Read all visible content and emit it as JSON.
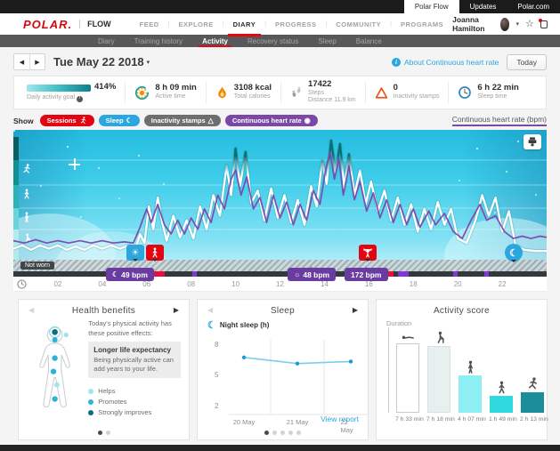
{
  "icons": {
    "moon": "☾",
    "sun": "☀",
    "day_sun": "☼",
    "warning_triangle": "△",
    "hr_sensor": "◉",
    "star": "☆",
    "caret_down": "▾",
    "arrow_left": "◀",
    "arrow_right": "▶"
  },
  "topbar": {
    "polar_flow": "Polar Flow",
    "updates": "Updates",
    "polar_com": "Polar.com"
  },
  "header": {
    "logo": "POLAR.",
    "flow": "FLOW",
    "nav": [
      "FEED",
      "EXPLORE",
      "DIARY",
      "PROGRESS",
      "COMMUNITY",
      "PROGRAMS"
    ],
    "user": "Joanna Hamilton"
  },
  "subnav": {
    "items": [
      "Diary",
      "Training history",
      "Activity",
      "Recovery status",
      "Sleep",
      "Balance"
    ]
  },
  "daterow": {
    "date": "Tue May 22 2018",
    "about": "About Continuous heart rate",
    "today": "Today"
  },
  "stats": {
    "goal_value": "414%",
    "goal_label": "Daily activity goal",
    "active_value": "8 h 09 min",
    "active_label": "Active time",
    "cal_value": "3108 kcal",
    "cal_label": "Total calories",
    "steps_value": "17422",
    "steps_label": "Steps",
    "steps_sub": "Distance 11.9 km",
    "inact_value": "0",
    "inact_label": "Inactivity stamps",
    "sleep_value": "6 h 22 min",
    "sleep_label": "Sleep time"
  },
  "filters": {
    "show": "Show",
    "sessions": "Sessions",
    "sleep": "Sleep",
    "inactivity": "Inactivity stamps",
    "chr": "Continuous heart rate",
    "axis": "Continuous heart rate (bpm)"
  },
  "hrchart": {
    "not_worn": "Not worn",
    "badge_night": "49 bpm",
    "badge_day": "48 bpm",
    "badge_max": "172 bpm"
  },
  "cards": {
    "health": {
      "title": "Health benefits",
      "intro": "Today's physical activity has these positive effects:",
      "hl_title": "Longer life expectancy",
      "hl_text": "Being physically active can add years to your life.",
      "legend": [
        "Helps",
        "Promotes",
        "Strongly improves"
      ]
    },
    "sleep": {
      "title": "Sleep",
      "link": "View report"
    },
    "score": {
      "title": "Activity score",
      "duration": "Duration"
    }
  },
  "chart_data": [
    {
      "id": "continuous-heart-rate-day",
      "type": "line",
      "x_unit": "hour_of_day",
      "x_ticks": [
        "02",
        "04",
        "06",
        "08",
        "10",
        "12",
        "14",
        "16",
        "18",
        "20",
        "22"
      ],
      "series": [
        {
          "name": "activity-intensity",
          "points": [
            [
              0,
              0.05
            ],
            [
              0.4,
              0.08
            ],
            [
              0.8,
              0.04
            ],
            [
              1.2,
              0.08
            ],
            [
              1.6,
              0.05
            ],
            [
              2,
              0.08
            ],
            [
              2.4,
              0.04
            ],
            [
              2.8,
              0.07
            ],
            [
              3.2,
              0.04
            ],
            [
              3.6,
              0.08
            ],
            [
              4,
              0.05
            ],
            [
              4.4,
              0.08
            ],
            [
              4.8,
              0.05
            ],
            [
              5.2,
              0.08
            ],
            [
              5.5,
              0.05
            ],
            [
              5.7,
              0.18
            ],
            [
              5.9,
              0.1
            ],
            [
              6.1,
              0.42
            ],
            [
              6.3,
              0.22
            ],
            [
              6.5,
              0.5
            ],
            [
              6.7,
              0.28
            ],
            [
              6.9,
              0.12
            ],
            [
              7.2,
              0.34
            ],
            [
              7.5,
              0.15
            ],
            [
              7.8,
              0.3
            ],
            [
              8.1,
              0.14
            ],
            [
              8.4,
              0.42
            ],
            [
              8.7,
              0.22
            ],
            [
              9,
              0.52
            ],
            [
              9.3,
              0.34
            ],
            [
              9.6,
              0.78
            ],
            [
              9.8,
              0.52
            ],
            [
              10,
              0.93
            ],
            [
              10.2,
              0.6
            ],
            [
              10.45,
              0.9
            ],
            [
              10.7,
              0.45
            ],
            [
              11,
              0.56
            ],
            [
              11.3,
              0.3
            ],
            [
              11.6,
              0.58
            ],
            [
              11.9,
              0.32
            ],
            [
              12.2,
              0.52
            ],
            [
              12.5,
              0.28
            ],
            [
              12.8,
              0.48
            ],
            [
              13.1,
              0.26
            ],
            [
              13.4,
              0.6
            ],
            [
              13.65,
              0.42
            ],
            [
              13.9,
              0.82
            ],
            [
              14.1,
              0.62
            ],
            [
              14.3,
              1
            ],
            [
              14.5,
              0.72
            ],
            [
              14.7,
              0.97
            ],
            [
              14.9,
              0.58
            ],
            [
              15.1,
              0.88
            ],
            [
              15.35,
              0.52
            ],
            [
              15.6,
              0.74
            ],
            [
              15.85,
              0.44
            ],
            [
              16.1,
              0.64
            ],
            [
              16.4,
              0.38
            ],
            [
              16.7,
              0.56
            ],
            [
              17,
              0.3
            ],
            [
              17.3,
              0.5
            ],
            [
              17.6,
              0.26
            ],
            [
              17.9,
              0.44
            ],
            [
              18.2,
              0.2
            ],
            [
              18.5,
              0.4
            ],
            [
              18.8,
              0.22
            ],
            [
              19.1,
              0.46
            ],
            [
              19.4,
              0.26
            ],
            [
              19.7,
              0.4
            ],
            [
              20,
              0.14
            ],
            [
              20.4,
              0.1
            ],
            [
              20.8,
              0.3
            ],
            [
              21.1,
              0.52
            ],
            [
              21.4,
              0.34
            ],
            [
              21.7,
              0.5
            ],
            [
              22,
              0.2
            ],
            [
              22.3,
              0.38
            ],
            [
              22.6,
              0.08
            ],
            [
              23,
              0.04
            ],
            [
              23.5,
              0.03
            ],
            [
              24,
              0.03
            ]
          ]
        },
        {
          "name": "heart-rate-bpm",
          "points": [
            [
              0,
              0.12
            ],
            [
              0.5,
              0.1
            ],
            [
              1,
              0.13
            ],
            [
              1.5,
              0.1
            ],
            [
              2,
              0.12
            ],
            [
              2.5,
              0.1
            ],
            [
              3,
              0.12
            ],
            [
              3.5,
              0.1
            ],
            [
              4,
              0.12
            ],
            [
              4.5,
              0.1
            ],
            [
              5,
              0.11
            ],
            [
              5.4,
              0.1
            ],
            [
              5.7,
              0.24
            ],
            [
              6,
              0.4
            ],
            [
              6.2,
              0.28
            ],
            [
              6.5,
              0.44
            ],
            [
              6.8,
              0.26
            ],
            [
              7.1,
              0.18
            ],
            [
              7.4,
              0.3
            ],
            [
              7.7,
              0.18
            ],
            [
              8,
              0.32
            ],
            [
              8.3,
              0.22
            ],
            [
              8.6,
              0.4
            ],
            [
              8.9,
              0.28
            ],
            [
              9.2,
              0.52
            ],
            [
              9.5,
              0.4
            ],
            [
              9.8,
              0.66
            ],
            [
              10,
              0.74
            ],
            [
              10.25,
              0.52
            ],
            [
              10.5,
              0.68
            ],
            [
              10.8,
              0.4
            ],
            [
              11.1,
              0.5
            ],
            [
              11.4,
              0.28
            ],
            [
              11.7,
              0.52
            ],
            [
              12,
              0.32
            ],
            [
              12.3,
              0.46
            ],
            [
              12.6,
              0.26
            ],
            [
              12.9,
              0.44
            ],
            [
              13.2,
              0.3
            ],
            [
              13.5,
              0.56
            ],
            [
              13.8,
              0.44
            ],
            [
              14.05,
              0.74
            ],
            [
              14.25,
              0.9
            ],
            [
              14.45,
              0.66
            ],
            [
              14.65,
              0.84
            ],
            [
              14.85,
              0.52
            ],
            [
              15.1,
              0.78
            ],
            [
              15.35,
              0.48
            ],
            [
              15.6,
              0.64
            ],
            [
              15.9,
              0.38
            ],
            [
              16.2,
              0.54
            ],
            [
              16.5,
              0.32
            ],
            [
              16.8,
              0.48
            ],
            [
              17.1,
              0.28
            ],
            [
              17.4,
              0.44
            ],
            [
              17.7,
              0.26
            ],
            [
              18,
              0.4
            ],
            [
              18.3,
              0.24
            ],
            [
              18.7,
              0.38
            ],
            [
              19,
              0.26
            ],
            [
              19.4,
              0.36
            ],
            [
              19.8,
              0.2
            ],
            [
              20.2,
              0.14
            ],
            [
              20.6,
              0.3
            ],
            [
              21,
              0.44
            ],
            [
              21.3,
              0.3
            ],
            [
              21.7,
              0.34
            ],
            [
              22.1,
              0.2
            ],
            [
              22.5,
              0.14
            ],
            [
              22.9,
              0.16
            ],
            [
              23.3,
              0.14
            ],
            [
              23.7,
              0.16
            ],
            [
              24,
              0.15
            ]
          ]
        }
      ],
      "annotations": {
        "night_low": "49 bpm",
        "day_low": "48 bpm",
        "session_max": "172 bpm"
      },
      "session_segments": [
        [
          5.95,
          6.8
        ],
        [
          15.5,
          17.1
        ]
      ],
      "hr_mark_segments": [
        [
          8.05,
          8.25
        ],
        [
          13.1,
          13.3
        ],
        [
          17.3,
          17.8
        ],
        [
          19.8,
          20.0
        ],
        [
          21.2,
          21.4
        ]
      ]
    },
    {
      "id": "night-sleep",
      "type": "line",
      "ylabel": "Night sleep (h)",
      "categories": [
        "20 May",
        "21 May",
        "22 May"
      ],
      "values": [
        6.8,
        6.2,
        6.4
      ],
      "yticks": [
        "8",
        "5",
        "2"
      ]
    },
    {
      "id": "activity-duration",
      "type": "bar",
      "categories": [
        "lying",
        "sitting",
        "standing",
        "walking",
        "running"
      ],
      "labels": [
        "7 h 33 min",
        "7 h 18 min",
        "4 h 07 min",
        "1 h 49 min",
        "2 h 13 min"
      ],
      "minutes": [
        453,
        438,
        247,
        109,
        133
      ]
    }
  ]
}
